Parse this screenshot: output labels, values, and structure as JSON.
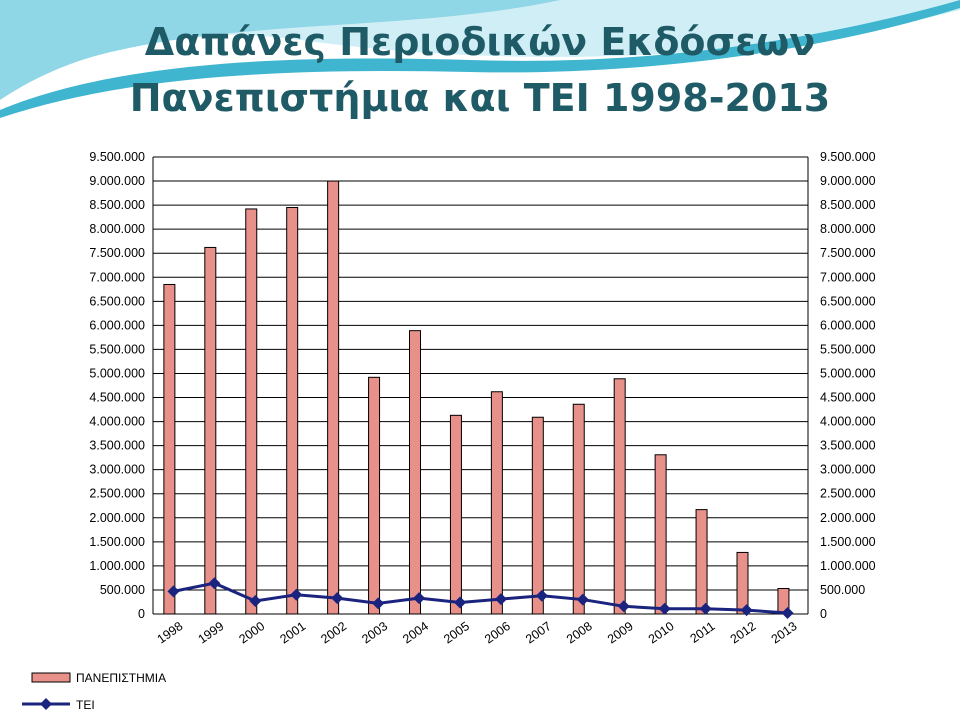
{
  "title": {
    "line1": "Δαπάνες Περιοδικών Εκδόσεων",
    "line2": "Πανεπιστήμια και ΤΕΙ 1998-2013"
  },
  "colors": {
    "title": "#1f5b66",
    "bar_fill": "#e8908a",
    "bar_stroke": "#000000",
    "line": "#1a237e",
    "swoosh_light": "#cfeef5",
    "swoosh_mid": "#8fd6e6",
    "swoosh_dark": "#3fb5cf"
  },
  "chart_data": {
    "type": "bar",
    "categories": [
      "1998",
      "1999",
      "2000",
      "2001",
      "2002",
      "2003",
      "2004",
      "2005",
      "2006",
      "2007",
      "2008",
      "2009",
      "2010",
      "2011",
      "2012",
      "2013"
    ],
    "series": [
      {
        "name": "ΠΑΝΕΠΙΣΤΗΜΙΑ",
        "type": "bar",
        "values": [
          6850000,
          7620000,
          8420000,
          8450000,
          9000000,
          4920000,
          5890000,
          4130000,
          4620000,
          4090000,
          4360000,
          4890000,
          3310000,
          2170000,
          1280000,
          530000
        ]
      },
      {
        "name": "ΤΕΙ",
        "type": "line",
        "marker": "diamond",
        "values": [
          470000,
          640000,
          270000,
          400000,
          330000,
          220000,
          330000,
          240000,
          310000,
          380000,
          300000,
          160000,
          110000,
          110000,
          80000,
          20000
        ]
      }
    ],
    "ylim": [
      0,
      9500000
    ],
    "ytick_labels": [
      "0",
      "500.000",
      "1.000.000",
      "1.500.000",
      "2.000.000",
      "2.500.000",
      "3.000.000",
      "3.500.000",
      "4.000.000",
      "4.500.000",
      "5.000.000",
      "5.500.000",
      "6.000.000",
      "6.500.000",
      "7.000.000",
      "7.500.000",
      "8.000.000",
      "8.500.000",
      "9.000.000",
      "9.500.000"
    ],
    "secondary_axis": true,
    "grid": true,
    "legend_position": "bottom-left"
  }
}
